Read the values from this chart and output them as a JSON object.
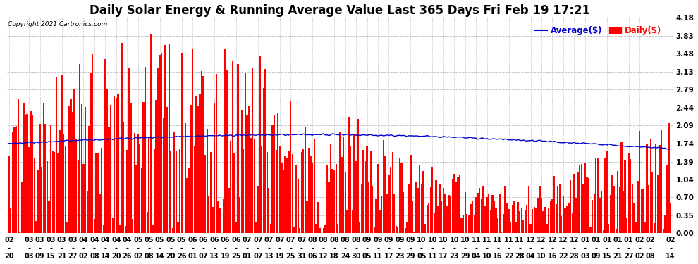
{
  "title": "Daily Solar Energy & Running Average Value Last 365 Days Fri Feb 19 17:21",
  "copyright": "Copyright 2021 Cartronics.com",
  "legend_avg": "Average($)",
  "legend_daily": "Daily($)",
  "ylim": [
    0.0,
    4.18
  ],
  "yticks": [
    0.0,
    0.35,
    0.7,
    1.04,
    1.39,
    1.74,
    2.09,
    2.44,
    2.79,
    3.13,
    3.48,
    3.83,
    4.18
  ],
  "bar_color": "#ff0000",
  "avg_color": "#0000cd",
  "background_color": "#ffffff",
  "grid_color": "#bbbbbb",
  "title_fontsize": 12,
  "tick_fontsize": 7.5,
  "n_points": 365,
  "x_labels": [
    "02-20",
    "03-03",
    "03-09",
    "03-15",
    "03-21",
    "03-27",
    "04-02",
    "04-08",
    "04-14",
    "04-20",
    "04-26",
    "05-02",
    "05-08",
    "05-14",
    "05-20",
    "05-26",
    "06-01",
    "06-07",
    "06-13",
    "06-19",
    "06-25",
    "07-01",
    "07-07",
    "07-13",
    "07-19",
    "07-25",
    "07-31",
    "08-06",
    "08-12",
    "08-18",
    "08-24",
    "08-30",
    "09-05",
    "09-11",
    "09-17",
    "09-23",
    "09-29",
    "10-05",
    "10-11",
    "10-17",
    "10-23",
    "10-29",
    "11-04",
    "11-10",
    "11-16",
    "11-22",
    "11-28",
    "12-04",
    "12-10",
    "12-16",
    "12-22",
    "12-28",
    "01-03",
    "01-09",
    "01-15",
    "01-21",
    "01-27",
    "02-02",
    "02-08",
    "02-14"
  ],
  "x_tick_positions": [
    0,
    11,
    17,
    23,
    29,
    35,
    41,
    47,
    53,
    59,
    65,
    71,
    77,
    83,
    89,
    95,
    101,
    107,
    113,
    119,
    125,
    131,
    137,
    143,
    149,
    155,
    161,
    167,
    173,
    179,
    185,
    191,
    197,
    203,
    209,
    215,
    221,
    227,
    233,
    239,
    245,
    251,
    257,
    263,
    269,
    275,
    281,
    287,
    293,
    299,
    305,
    311,
    317,
    323,
    329,
    335,
    341,
    347,
    353,
    364
  ]
}
